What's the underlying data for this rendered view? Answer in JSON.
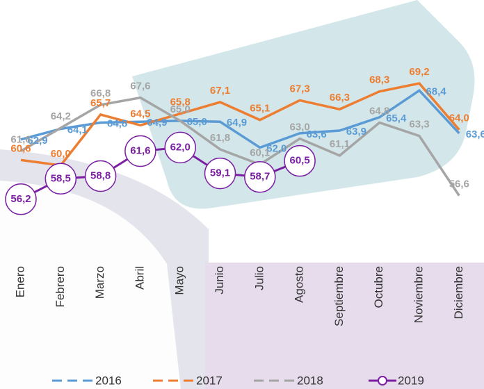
{
  "chart_data": {
    "type": "line",
    "categories": [
      "Enero",
      "Febrero",
      "Marzo",
      "Abril",
      "Mayo",
      "Junio",
      "Julio",
      "Agosto",
      "Septiembre",
      "Octubre",
      "Noviembre",
      "Diciembre"
    ],
    "ylim": [
      54,
      71
    ],
    "series": [
      {
        "name": "2016",
        "color": "#5b9bd5",
        "values": [
          62.9,
          64.1,
          64.8,
          64.9,
          65.0,
          64.9,
          62.0,
          63.6,
          63.9,
          65.4,
          68.4,
          63.6
        ],
        "value_labels": [
          "62,9",
          "64,1",
          "64,8",
          "64,9",
          "65,0",
          "64,9",
          "62,0",
          "63,6",
          "63,9",
          "65,4",
          "68,4",
          "63,6"
        ]
      },
      {
        "name": "2017",
        "color": "#ed7d31",
        "values": [
          60.6,
          60.0,
          65.7,
          64.5,
          65.8,
          67.1,
          65.1,
          67.3,
          66.3,
          68.3,
          69.2,
          64.0
        ],
        "value_labels": [
          "60,6",
          "60,0",
          "65,7",
          "64,5",
          "65,8",
          "67,1",
          "65,1",
          "67,3",
          "66,3",
          "68,3",
          "69,2",
          "64,0"
        ]
      },
      {
        "name": "2018",
        "color": "#a5a5a5",
        "values": [
          61.6,
          64.2,
          66.8,
          67.6,
          65.0,
          61.8,
          60.1,
          63.0,
          61.1,
          64.8,
          63.3,
          56.6
        ],
        "value_labels": [
          "61,6",
          "64,2",
          "66,8",
          "67,6",
          "65,0",
          "61,8",
          "60,1",
          "63,0",
          "61,1",
          "64,8",
          "63,3",
          "56,6"
        ]
      },
      {
        "name": "2019",
        "color": "#7b1fa2",
        "values": [
          56.2,
          58.5,
          58.8,
          61.6,
          62.0,
          59.1,
          58.7,
          60.5,
          null,
          null,
          null,
          null
        ],
        "value_labels": [
          "56,2",
          "58,5",
          "58,8",
          "61,6",
          "62,0",
          "59,1",
          "58,7",
          "60,5",
          null,
          null,
          null,
          null
        ]
      }
    ]
  }
}
